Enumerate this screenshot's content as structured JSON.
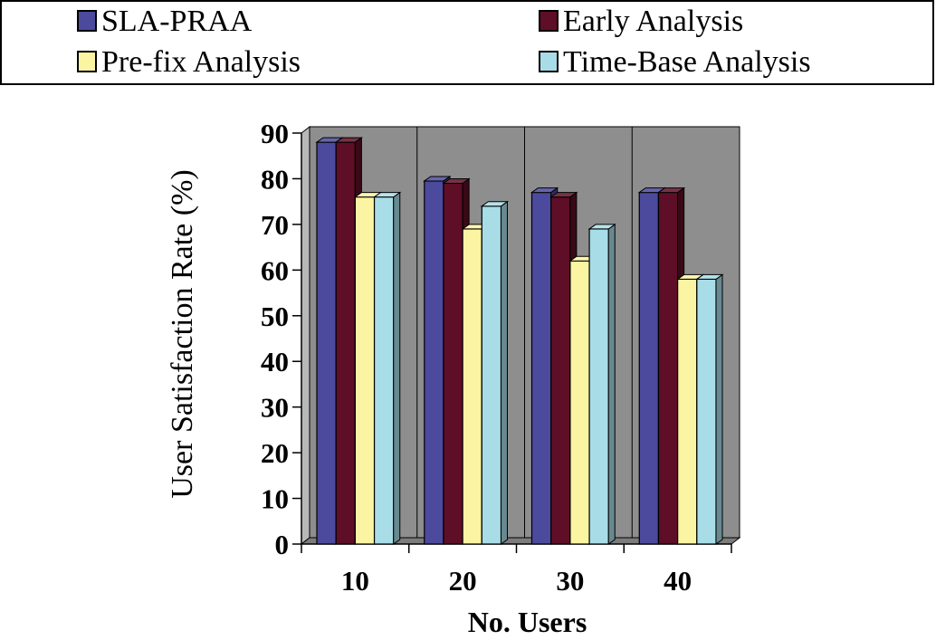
{
  "chart_data": {
    "type": "bar",
    "title": "",
    "xlabel": "No. Users",
    "ylabel": "User Satisfaction Rate (%)",
    "ylim": [
      0,
      90
    ],
    "yticks": [
      "0",
      "10",
      "20",
      "30",
      "40",
      "50",
      "60",
      "70",
      "80",
      "90"
    ],
    "categories": [
      "10",
      "20",
      "30",
      "40"
    ],
    "legend_position": "top",
    "series": [
      {
        "name": "SLA-PRAA",
        "color": "#4B4A9C",
        "values": [
          88,
          79.5,
          77,
          77
        ]
      },
      {
        "name": "Early Analysis",
        "color": "#5E0E26",
        "values": [
          88,
          79,
          76,
          77
        ]
      },
      {
        "name": "Pre-fix Analysis",
        "color": "#FBF4A2",
        "values": [
          76,
          69,
          62,
          58
        ]
      },
      {
        "name": "Time-Base Analysis",
        "color": "#A8DDE8",
        "values": [
          76,
          74,
          69,
          58
        ]
      }
    ]
  }
}
